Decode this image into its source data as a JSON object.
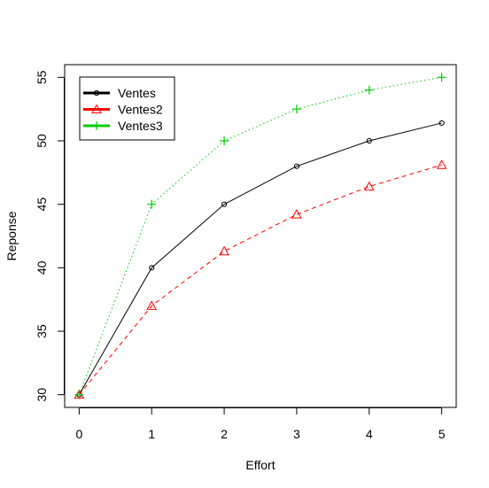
{
  "chart_data": {
    "type": "line",
    "title": "",
    "xlabel": "Effort",
    "ylabel": "Reponse",
    "x": [
      0,
      1,
      2,
      3,
      4,
      5
    ],
    "xlim": [
      -0.2,
      5.2
    ],
    "ylim": [
      29.0,
      56.0
    ],
    "xticks": [
      "0",
      "1",
      "2",
      "3",
      "4",
      "5"
    ],
    "yticks": [
      "30",
      "35",
      "40",
      "45",
      "50",
      "55"
    ],
    "ytick_values": [
      30,
      35,
      40,
      45,
      50,
      55
    ],
    "grid": false,
    "legend_position": "top-left",
    "series": [
      {
        "name": "Ventes",
        "values": [
          30.0,
          40.0,
          45.0,
          48.0,
          50.0,
          51.4
        ],
        "color": "#000000",
        "line": "solid",
        "marker": "circle"
      },
      {
        "name": "Ventes2",
        "values": [
          30.0,
          37.0,
          41.3,
          44.2,
          46.4,
          48.1
        ],
        "color": "#ff0000",
        "line": "dashed",
        "marker": "triangle"
      },
      {
        "name": "Ventes3",
        "values": [
          30.0,
          45.0,
          50.0,
          52.5,
          54.0,
          55.0
        ],
        "color": "#00cd00",
        "line": "dotted",
        "marker": "plus"
      }
    ]
  }
}
